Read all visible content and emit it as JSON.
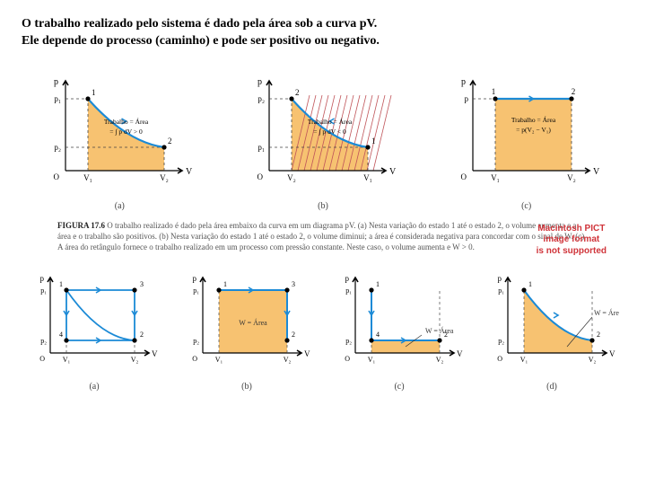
{
  "title_line1": "O trabalho realizado pelo sistema é dado pela área sob a curva pV.",
  "title_line2": "Ele depende do processo (caminho) e pode ser positivo ou negativo.",
  "colors": {
    "fill": "#f7c271",
    "stroke_axis": "#000000",
    "curve": "#1b8ad6",
    "dash": "#444444",
    "hatch": "#c0555a",
    "text": "#000000",
    "fig_text": "#555555",
    "error": "#d0343a"
  },
  "axis_labels": {
    "y": "p",
    "x": "V",
    "origin": "O"
  },
  "top_panels": [
    {
      "label": "(a)",
      "p_ticks": [
        "p₁",
        "p₂"
      ],
      "v_ticks": [
        "V₁",
        "V₂"
      ],
      "text_lines": [
        "Trabalho = Área",
        "= ∫ p dV > 0"
      ],
      "curve": "down",
      "hatched": false,
      "arrow": "right"
    },
    {
      "label": "(b)",
      "p_ticks": [
        "p₂",
        "p₁"
      ],
      "v_ticks": [
        "V₂",
        "V₁"
      ],
      "text_lines": [
        "Trabalho = Área",
        "= ∫ p dV < 0"
      ],
      "curve": "down",
      "hatched": true,
      "arrow": "left"
    },
    {
      "label": "(c)",
      "p_ticks": [
        "p"
      ],
      "v_ticks": [
        "V₁",
        "V₂"
      ],
      "text_lines": [
        "Trabalho = Área",
        "= p(V₂ − V₁)"
      ],
      "curve": "flat",
      "hatched": false,
      "arrow": "right"
    }
  ],
  "caption": {
    "heading": "FIGURA 17.6",
    "body": "O trabalho realizado é dado pela área embaixo da curva em um diagrama pV. (a) Nesta variação do estado 1 até o estado 2, o volume aumenta e a área e o trabalho são positivos. (b) Nesta variação do estado 1 até o estado 2, o volume diminui; a área é considerada negativa para concordar com o sinal de W. (c) A área do retângulo fornece o trabalho realizado em um processo com pressão constante. Neste caso, o volume aumenta e W > 0."
  },
  "error_lines": [
    "Macintosh PICT",
    "image format",
    "is not supported"
  ],
  "bottom_panels": [
    {
      "label": "(a)",
      "type": "double-path",
      "p_ticks": [
        "p₁",
        "p₂"
      ],
      "v_ticks": [
        "V₁",
        "V₂"
      ]
    },
    {
      "label": "(b)",
      "type": "rect-fill",
      "p_ticks": [
        "p₁",
        "p₂"
      ],
      "v_ticks": [
        "V₁",
        "V₂"
      ],
      "text": "W = Área"
    },
    {
      "label": "(c)",
      "type": "small-rect",
      "p_ticks": [
        "p₁",
        "p₂"
      ],
      "v_ticks": [
        "V₁",
        "V₂"
      ],
      "text": "W = Área"
    },
    {
      "label": "(d)",
      "type": "curve-area",
      "p_ticks": [
        "p₁",
        "p₂"
      ],
      "v_ticks": [
        "V₁",
        "V₂"
      ],
      "text": "W = Área"
    }
  ]
}
